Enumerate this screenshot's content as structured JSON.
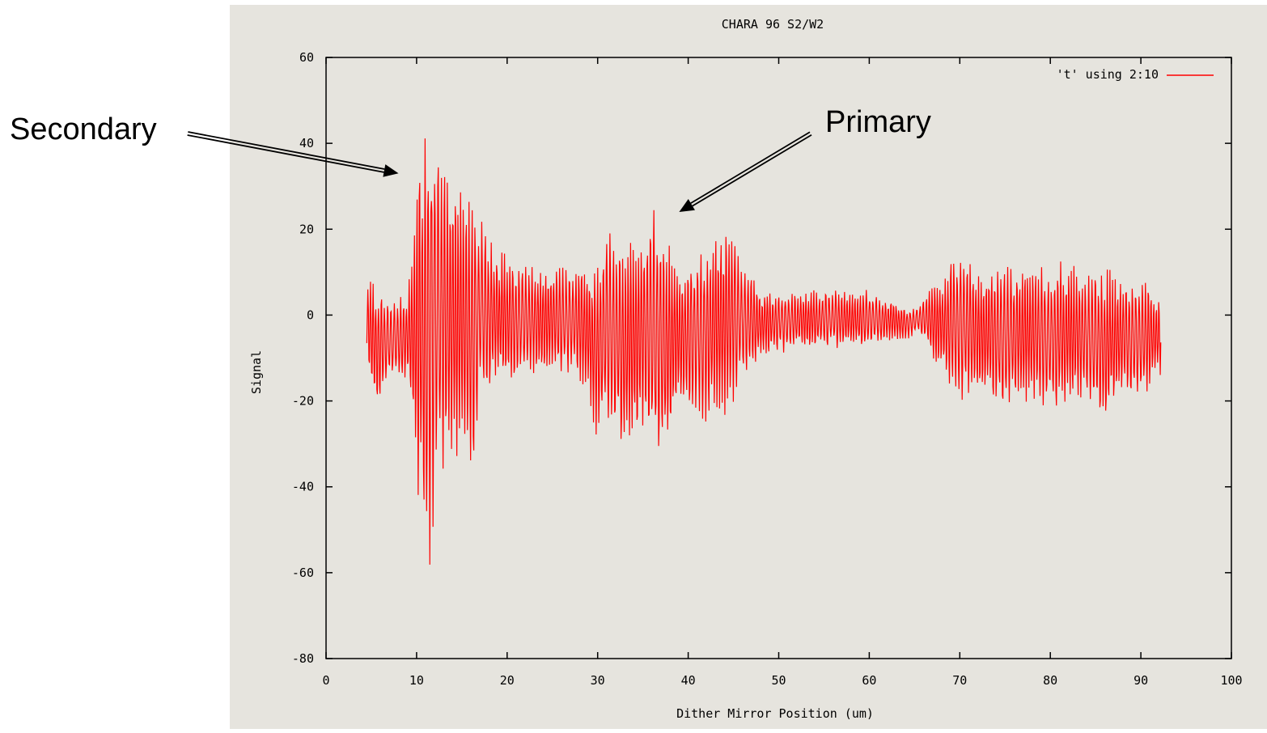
{
  "chart_data": {
    "type": "line",
    "title": "CHARA 96 S2/W2",
    "xlabel": "Dither Mirror Position (um)",
    "ylabel": "Signal",
    "xlim": [
      0,
      100
    ],
    "ylim": [
      -80,
      60
    ],
    "xticks": [
      0,
      10,
      20,
      30,
      40,
      50,
      60,
      70,
      80,
      90,
      100
    ],
    "yticks": [
      -80,
      -60,
      -40,
      -20,
      0,
      20,
      40,
      60
    ],
    "grid": false,
    "legend_position": "top-right",
    "series": [
      {
        "name": "'t' using 2:10",
        "color": "#ff0000",
        "x_range": [
          4.5,
          92.2
        ],
        "envelope": {
          "x": [
            4.5,
            5.5,
            7,
            9,
            10.5,
            11.2,
            12,
            13,
            14,
            15,
            16,
            17,
            18,
            20,
            22,
            25,
            28,
            30,
            31,
            33,
            35,
            36.5,
            37.5,
            39,
            41,
            43,
            44.5,
            46,
            48,
            50,
            55,
            60,
            62,
            64,
            65.5,
            66.5,
            68,
            70,
            72,
            75,
            78,
            80,
            82,
            84,
            86,
            88,
            90,
            92.2
          ],
          "upper": [
            10,
            8,
            4,
            5,
            45,
            53,
            47,
            35,
            33,
            31,
            31,
            25,
            18,
            14,
            12,
            12,
            12,
            14,
            20,
            18,
            22,
            27,
            18,
            12,
            16,
            18,
            23,
            13,
            6,
            6,
            6,
            6,
            4,
            2,
            2,
            6,
            10,
            16,
            12,
            12,
            12,
            12,
            13,
            10,
            11,
            10,
            9,
            5
          ],
          "lower": [
            -12,
            -23,
            -16,
            -15,
            -52,
            -68,
            -45,
            -38,
            -35,
            -33,
            -41,
            -22,
            -18,
            -16,
            -14,
            -14,
            -15,
            -30,
            -25,
            -34,
            -30,
            -33,
            -35,
            -22,
            -25,
            -25,
            -25,
            -15,
            -10,
            -9,
            -8,
            -8,
            -6,
            -6,
            -4,
            -8,
            -15,
            -20,
            -20,
            -22,
            -20,
            -24,
            -22,
            -20,
            -25,
            -20,
            -21,
            -14
          ]
        }
      }
    ],
    "annotations": [
      {
        "text": "Secondary",
        "points_to": [
          8,
          33
        ]
      },
      {
        "text": "Primary",
        "points_to": [
          39,
          24
        ]
      }
    ]
  }
}
